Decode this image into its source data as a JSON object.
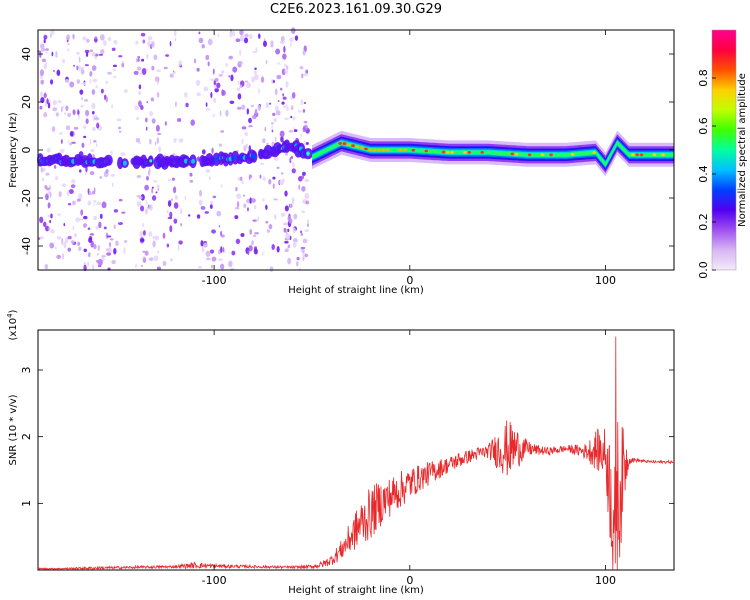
{
  "title": "C2E6.2023.161.09.30.G29",
  "chart_data": [
    {
      "type": "heatmap",
      "ylabel": "Frequency (Hz)",
      "xlabel": "Height of straight line (km)",
      "x_range": [
        -190,
        135
      ],
      "y_range": [
        -50,
        50
      ],
      "x_ticks": [
        -100,
        0,
        100
      ],
      "x_tick_labels": [
        "-100",
        "0",
        "100"
      ],
      "y_ticks": [
        -40,
        -20,
        0,
        20,
        40
      ],
      "y_tick_labels": [
        "-40",
        "-20",
        "0",
        "20",
        "40"
      ],
      "colorbar": {
        "label": "Normalized spectral amplitude",
        "range": [
          0,
          1
        ],
        "ticks": [
          0.0,
          0.2,
          0.4,
          0.6,
          0.8
        ],
        "tick_labels": [
          "0.0",
          "0.2",
          "0.4",
          "0.6",
          "0.8"
        ],
        "colors": [
          "#f3eafb",
          "#d7b6f4",
          "#a050f0",
          "#5000f0",
          "#0040ff",
          "#00c0ff",
          "#00ffa0",
          "#40ff00",
          "#c0ff00",
          "#ffd000",
          "#ff5000",
          "#ff0040",
          "#ff0090"
        ]
      },
      "ridge_points": [
        {
          "x": -190,
          "y": -4
        },
        {
          "x": -150,
          "y": -5
        },
        {
          "x": -120,
          "y": -5
        },
        {
          "x": -100,
          "y": -4
        },
        {
          "x": -80,
          "y": -3
        },
        {
          "x": -60,
          "y": 2
        },
        {
          "x": -50,
          "y": -3
        },
        {
          "x": -35,
          "y": 3
        },
        {
          "x": -20,
          "y": 0
        },
        {
          "x": 0,
          "y": 0
        },
        {
          "x": 20,
          "y": -1
        },
        {
          "x": 40,
          "y": -1
        },
        {
          "x": 60,
          "y": -2
        },
        {
          "x": 80,
          "y": -2
        },
        {
          "x": 95,
          "y": -1
        },
        {
          "x": 100,
          "y": -6
        },
        {
          "x": 106,
          "y": 3
        },
        {
          "x": 112,
          "y": -2
        },
        {
          "x": 135,
          "y": -2
        }
      ]
    },
    {
      "type": "line",
      "ylabel": "SNR (10 * v/v)",
      "y_multiplier_label": "(x10",
      "y_multiplier_exponent": "4",
      "y_multiplier_close": ")",
      "xlabel": "Height of straight line (km)",
      "x_range": [
        -190,
        135
      ],
      "y_range": [
        0,
        3.6
      ],
      "x_ticks": [
        -100,
        0,
        100
      ],
      "x_tick_labels": [
        "-100",
        "0",
        "100"
      ],
      "y_ticks": [
        1,
        2,
        3
      ],
      "y_tick_labels": [
        "1",
        "2",
        "3"
      ],
      "line_color": "#e8282a",
      "series": [
        {
          "x": [
            -190,
            -180,
            -160,
            -140,
            -120,
            -110,
            -100,
            -80,
            -60,
            -50,
            -45,
            -40,
            -35,
            -30,
            -25,
            -20,
            -15,
            -10,
            -5,
            0,
            5,
            10,
            15,
            20,
            25,
            30,
            35,
            40,
            45,
            50,
            55,
            60,
            65,
            70,
            75,
            80,
            85,
            90,
            95,
            100,
            102,
            104,
            106,
            108,
            110,
            112,
            115,
            120,
            125,
            130,
            135
          ],
          "y": [
            0.02,
            0.02,
            0.03,
            0.04,
            0.05,
            0.07,
            0.06,
            0.05,
            0.04,
            0.05,
            0.08,
            0.15,
            0.3,
            0.5,
            0.7,
            0.85,
            1.0,
            1.1,
            1.2,
            1.3,
            1.38,
            1.45,
            1.52,
            1.58,
            1.65,
            1.7,
            1.75,
            1.78,
            1.8,
            1.82,
            1.83,
            1.82,
            1.8,
            1.78,
            1.8,
            1.82,
            1.8,
            1.78,
            1.8,
            1.75,
            1.3,
            0.9,
            0.95,
            1.3,
            1.6,
            1.65,
            1.65,
            1.63,
            1.62,
            1.62,
            1.62
          ],
          "noise_amp": [
            0.01,
            0.01,
            0.02,
            0.02,
            0.02,
            0.05,
            0.03,
            0.02,
            0.02,
            0.03,
            0.05,
            0.08,
            0.15,
            0.25,
            0.35,
            0.4,
            0.35,
            0.3,
            0.28,
            0.25,
            0.2,
            0.18,
            0.15,
            0.12,
            0.12,
            0.1,
            0.1,
            0.1,
            0.3,
            0.45,
            0.3,
            0.12,
            0.08,
            0.06,
            0.06,
            0.05,
            0.08,
            0.12,
            0.3,
            0.4,
            0.8,
            1.2,
            1.4,
            0.9,
            0.5,
            0.06,
            0.03,
            0.02,
            0.02,
            0.02,
            0.02
          ]
        }
      ]
    }
  ]
}
